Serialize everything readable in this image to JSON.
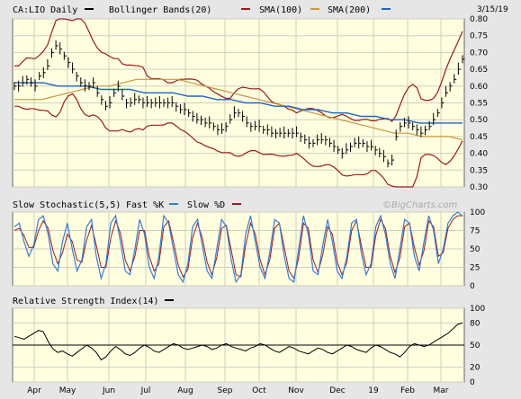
{
  "chart_data": {
    "type": "line",
    "date": "3/15/19",
    "watermark": "©BigCharts.com",
    "months": [
      "Apr",
      "May",
      "Jun",
      "Jul",
      "Aug",
      "Sep",
      "Oct",
      "Nov",
      "Dec",
      "19",
      "Feb",
      "Mar"
    ],
    "colors": {
      "price": "#000000",
      "bollinger": "#9b1b1b",
      "sma100": "#c8963c",
      "sma200": "#1e64c8",
      "fast_k": "#3a7bd5",
      "slow_d": "#9b1b1b",
      "rsi": "#000000",
      "panel_bg": "#ffffe0",
      "grid": "#c8c8c8"
    },
    "price_panel": {
      "legend": [
        "CA:LIO Daily",
        "Bollinger Bands(20)",
        "SMA(100)",
        "SMA(200)"
      ],
      "yticks": [
        "0.80",
        "0.75",
        "0.70",
        "0.65",
        "0.60",
        "0.55",
        "0.50",
        "0.45",
        "0.40",
        "0.35",
        "0.30"
      ],
      "ylim": [
        0.3,
        0.8
      ],
      "close": [
        0.6,
        0.6,
        0.61,
        0.62,
        0.61,
        0.6,
        0.63,
        0.64,
        0.66,
        0.7,
        0.72,
        0.71,
        0.69,
        0.67,
        0.65,
        0.63,
        0.61,
        0.6,
        0.6,
        0.61,
        0.58,
        0.56,
        0.54,
        0.55,
        0.58,
        0.6,
        0.57,
        0.55,
        0.55,
        0.56,
        0.56,
        0.55,
        0.55,
        0.55,
        0.55,
        0.55,
        0.55,
        0.55,
        0.55,
        0.54,
        0.53,
        0.53,
        0.52,
        0.51,
        0.5,
        0.5,
        0.49,
        0.49,
        0.48,
        0.47,
        0.47,
        0.48,
        0.5,
        0.52,
        0.52,
        0.51,
        0.49,
        0.48,
        0.48,
        0.48,
        0.47,
        0.47,
        0.46,
        0.46,
        0.46,
        0.46,
        0.46,
        0.46,
        0.46,
        0.45,
        0.44,
        0.43,
        0.43,
        0.44,
        0.44,
        0.44,
        0.43,
        0.42,
        0.41,
        0.4,
        0.41,
        0.42,
        0.43,
        0.43,
        0.43,
        0.42,
        0.42,
        0.41,
        0.4,
        0.39,
        0.37,
        0.38,
        0.45,
        0.48,
        0.49,
        0.49,
        0.48,
        0.47,
        0.46,
        0.47,
        0.48,
        0.5,
        0.52,
        0.55,
        0.58,
        0.6,
        0.62,
        0.65,
        0.68
      ],
      "sma100": [
        0.56,
        0.56,
        0.56,
        0.57,
        0.58,
        0.59,
        0.6,
        0.6,
        0.61,
        0.62,
        0.62,
        0.62,
        0.62,
        0.61,
        0.6,
        0.59,
        0.58,
        0.57,
        0.56,
        0.55,
        0.54,
        0.53,
        0.52,
        0.51,
        0.5,
        0.49,
        0.48,
        0.47,
        0.46,
        0.46,
        0.45,
        0.45,
        0.45,
        0.44
      ],
      "sma200": [
        0.61,
        0.61,
        0.61,
        0.6,
        0.6,
        0.6,
        0.59,
        0.59,
        0.59,
        0.58,
        0.58,
        0.58,
        0.57,
        0.57,
        0.56,
        0.56,
        0.55,
        0.55,
        0.54,
        0.54,
        0.53,
        0.53,
        0.52,
        0.52,
        0.51,
        0.51,
        0.5,
        0.5,
        0.49,
        0.49,
        0.49,
        0.49
      ]
    },
    "stoch_panel": {
      "legend": [
        "Slow Stochastic(5,5)",
        "Fast %K",
        "Slow %D"
      ],
      "yticks": [
        "100",
        "75",
        "50",
        "25",
        "0"
      ],
      "ylim": [
        0,
        100
      ],
      "fast_k": [
        80,
        85,
        60,
        40,
        55,
        90,
        95,
        70,
        30,
        20,
        60,
        85,
        50,
        20,
        35,
        80,
        90,
        40,
        10,
        30,
        85,
        95,
        60,
        20,
        15,
        50,
        90,
        70,
        25,
        10,
        40,
        95,
        85,
        50,
        15,
        5,
        30,
        80,
        90,
        55,
        20,
        10,
        50,
        90,
        80,
        35,
        5,
        15,
        70,
        95,
        60,
        25,
        10,
        45,
        90,
        85,
        40,
        10,
        5,
        50,
        95,
        70,
        20,
        15,
        55,
        90,
        60,
        20,
        10,
        40,
        85,
        90,
        45,
        15,
        30,
        80,
        95,
        70,
        30,
        10,
        50,
        90,
        85,
        40,
        20,
        60,
        95,
        75,
        30,
        50,
        85,
        95,
        100,
        95
      ],
      "slow_d": [
        75,
        78,
        68,
        52,
        52,
        75,
        88,
        78,
        48,
        30,
        45,
        70,
        60,
        35,
        32,
        62,
        82,
        55,
        25,
        25,
        65,
        88,
        72,
        35,
        20,
        40,
        75,
        75,
        40,
        20,
        30,
        80,
        88,
        60,
        28,
        12,
        22,
        65,
        85,
        65,
        32,
        15,
        38,
        78,
        82,
        48,
        15,
        12,
        55,
        85,
        70,
        35,
        15,
        35,
        78,
        85,
        52,
        20,
        10,
        38,
        85,
        78,
        35,
        18,
        42,
        80,
        70,
        32,
        15,
        32,
        75,
        88,
        55,
        25,
        25,
        68,
        90,
        78,
        40,
        18,
        38,
        80,
        85,
        52,
        28,
        48,
        88,
        80,
        40,
        45,
        78,
        90,
        95,
        95
      ]
    },
    "rsi_panel": {
      "legend": [
        "Relative Strength Index(14)"
      ],
      "yticks": [
        "100",
        "80",
        "50",
        "20",
        "0"
      ],
      "ylim": [
        0,
        100
      ],
      "values": [
        62,
        60,
        58,
        62,
        66,
        70,
        68,
        55,
        45,
        40,
        42,
        38,
        35,
        40,
        45,
        50,
        46,
        40,
        30,
        34,
        42,
        48,
        44,
        38,
        36,
        40,
        46,
        50,
        47,
        42,
        40,
        44,
        48,
        52,
        50,
        46,
        44,
        46,
        48,
        50,
        48,
        44,
        46,
        50,
        52,
        48,
        46,
        44,
        42,
        46,
        48,
        52,
        50,
        46,
        42,
        40,
        44,
        48,
        46,
        42,
        40,
        38,
        42,
        46,
        44,
        40,
        38,
        42,
        46,
        50,
        48,
        44,
        42,
        40,
        46,
        50,
        48,
        44,
        40,
        38,
        34,
        40,
        48,
        52,
        50,
        48,
        50,
        54,
        58,
        62,
        66,
        72,
        78,
        80
      ]
    }
  }
}
